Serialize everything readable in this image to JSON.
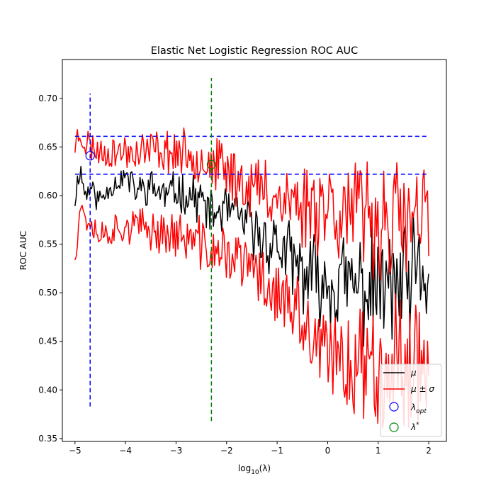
{
  "chart_data": {
    "type": "line",
    "title": "Elastic Net Logistic Regression ROC AUC",
    "xlabel": "log10(λ)",
    "ylabel": "ROC AUC",
    "xlim": [
      -5.25,
      2.35
    ],
    "ylim": [
      0.347,
      0.74
    ],
    "xticks": [
      -5,
      -4,
      -3,
      -2,
      -1,
      0,
      1,
      2
    ],
    "yticks": [
      0.35,
      0.4,
      0.45,
      0.5,
      0.55,
      0.6,
      0.65,
      0.7
    ],
    "grid": false,
    "legend_position": "bottom-right",
    "legend": [
      {
        "label": "μ",
        "kind": "line",
        "color": "#000000"
      },
      {
        "label": "μ ± σ",
        "kind": "line",
        "color": "#ff0000"
      },
      {
        "label": "λ_opt",
        "kind": "circle",
        "color": "#0000ff"
      },
      {
        "label": "λ*",
        "kind": "circle",
        "color": "#008000"
      }
    ],
    "x_range": [
      -5,
      2
    ],
    "series": [
      {
        "name": "μ",
        "color": "#000000",
        "keypoints": [
          [
            -5,
            0.597
          ],
          [
            -4.9,
            0.63
          ],
          [
            -4.8,
            0.6
          ],
          [
            -4.7,
            0.61
          ],
          [
            -4.6,
            0.6
          ],
          [
            -4.5,
            0.595
          ],
          [
            -4.3,
            0.61
          ],
          [
            -4,
            0.62
          ],
          [
            -3.8,
            0.605
          ],
          [
            -3.5,
            0.61
          ],
          [
            -3.2,
            0.6
          ],
          [
            -3,
            0.605
          ],
          [
            -2.7,
            0.6
          ],
          [
            -2.5,
            0.595
          ],
          [
            -2.3,
            0.58
          ],
          [
            -2,
            0.585
          ],
          [
            -1.7,
            0.575
          ],
          [
            -1.5,
            0.565
          ],
          [
            -1.3,
            0.555
          ],
          [
            -1,
            0.55
          ],
          [
            -0.7,
            0.53
          ],
          [
            -0.5,
            0.52
          ],
          [
            -0.3,
            0.515
          ],
          [
            0,
            0.51
          ],
          [
            0.3,
            0.51
          ],
          [
            0.6,
            0.505
          ],
          [
            1,
            0.505
          ],
          [
            1.3,
            0.505
          ],
          [
            1.6,
            0.505
          ],
          [
            2,
            0.52
          ]
        ],
        "jitter": [
          0.012,
          0.012,
          0.014,
          0.016,
          0.018,
          0.02,
          0.022,
          0.025,
          0.03,
          0.035,
          0.04,
          0.045,
          0.05,
          0.055,
          0.06
        ],
        "seed": 11
      },
      {
        "name": "μ+σ",
        "color": "#ff0000",
        "keypoints": [
          [
            -5,
            0.653
          ],
          [
            -4.9,
            0.665
          ],
          [
            -4.8,
            0.655
          ],
          [
            -4.5,
            0.645
          ],
          [
            -4,
            0.645
          ],
          [
            -3.5,
            0.648
          ],
          [
            -3,
            0.645
          ],
          [
            -2.5,
            0.64
          ],
          [
            -2.3,
            0.63
          ],
          [
            -2,
            0.625
          ],
          [
            -1.5,
            0.61
          ],
          [
            -1,
            0.6
          ],
          [
            -0.5,
            0.59
          ],
          [
            0,
            0.595
          ],
          [
            0.5,
            0.58
          ],
          [
            1,
            0.575
          ],
          [
            1.5,
            0.57
          ],
          [
            2,
            0.57
          ]
        ],
        "jitter": [
          0.015,
          0.015,
          0.017,
          0.019,
          0.021,
          0.024,
          0.027,
          0.03,
          0.035,
          0.04,
          0.045,
          0.05,
          0.055,
          0.06,
          0.06
        ],
        "seed": 23
      },
      {
        "name": "μ−σ",
        "color": "#ff0000",
        "keypoints": [
          [
            -5,
            0.54
          ],
          [
            -4.9,
            0.59
          ],
          [
            -4.8,
            0.58
          ],
          [
            -4.5,
            0.56
          ],
          [
            -4,
            0.57
          ],
          [
            -3.5,
            0.565
          ],
          [
            -3,
            0.56
          ],
          [
            -2.5,
            0.55
          ],
          [
            -2.3,
            0.54
          ],
          [
            -2,
            0.54
          ],
          [
            -1.5,
            0.525
          ],
          [
            -1,
            0.5
          ],
          [
            -0.5,
            0.465
          ],
          [
            0,
            0.43
          ],
          [
            0.5,
            0.43
          ],
          [
            1,
            0.43
          ],
          [
            1.5,
            0.43
          ],
          [
            2,
            0.44
          ]
        ],
        "jitter": [
          0.015,
          0.015,
          0.017,
          0.019,
          0.021,
          0.024,
          0.027,
          0.03,
          0.035,
          0.04,
          0.045,
          0.05,
          0.055,
          0.06,
          0.06
        ],
        "seed": 37
      }
    ],
    "reference_lines": [
      {
        "orientation": "horizontal",
        "y": 0.661,
        "x_from": -5,
        "x_to": 2,
        "color": "#0000ff",
        "style": "dashed"
      },
      {
        "orientation": "horizontal",
        "y": 0.622,
        "x_from": -5,
        "x_to": 2,
        "color": "#0000ff",
        "style": "dashed"
      },
      {
        "orientation": "vertical",
        "x": -4.7,
        "y_from": 0.383,
        "y_to": 0.705,
        "color": "#0000ff",
        "style": "dashed"
      },
      {
        "orientation": "vertical",
        "x": -2.3,
        "y_from": 0.368,
        "y_to": 0.721,
        "color": "#008000",
        "style": "dashed"
      }
    ],
    "markers": [
      {
        "name": "λ_opt",
        "x": -4.7,
        "y": 0.641,
        "color": "#0000ff"
      },
      {
        "name": "λ*",
        "x": -2.3,
        "y": 0.632,
        "color": "#008000"
      }
    ]
  }
}
